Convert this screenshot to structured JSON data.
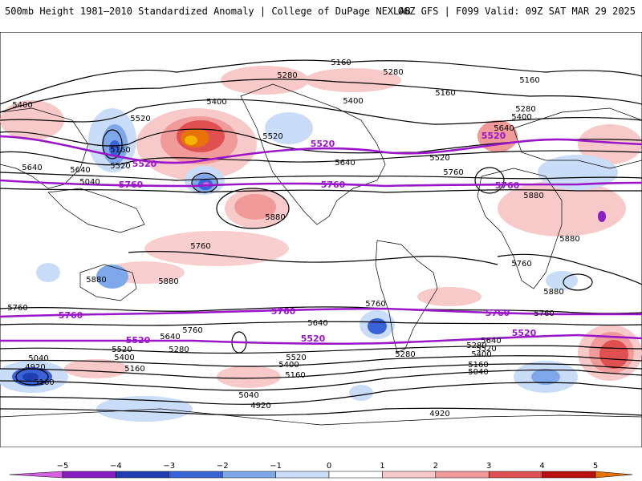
{
  "header": {
    "left": "500mb Height 1981–2010 Standardized Anomaly | College of DuPage NEXLAB",
    "right": "06Z GFS | F099 Valid: 09Z SAT MAR 29 2025"
  },
  "contour_labels": {
    "black": [
      "5160",
      "5280",
      "5400",
      "5160",
      "5280",
      "5400",
      "5400",
      "5520",
      "5640",
      "5160",
      "5520",
      "5640",
      "5760",
      "5640",
      "5880",
      "5880",
      "5880",
      "5880",
      "5880",
      "5760",
      "5760",
      "5640",
      "5760",
      "5760",
      "5640",
      "5520",
      "5400",
      "5280",
      "5160",
      "5040",
      "4920",
      "5280",
      "5520",
      "5400",
      "5160",
      "5040",
      "4920",
      "5640",
      "5520",
      "5400",
      "5280",
      "5160",
      "5040",
      "4920",
      "5160",
      "5280",
      "5400",
      "5520",
      "5640",
      "5520",
      "5160",
      "5040",
      "5880",
      "5760",
      "5760"
    ],
    "purple": [
      "5520",
      "5520",
      "5520",
      "5760",
      "5760",
      "5760",
      "5760",
      "5760",
      "5760",
      "5520",
      "5520",
      "5520"
    ]
  },
  "colorbar": {
    "ticks": [
      "−5",
      "−4",
      "−3",
      "−2",
      "−1",
      "0",
      "1",
      "2",
      "3",
      "4",
      "5"
    ],
    "colors": [
      "#d760e0",
      "#8a1fc4",
      "#1f3fb0",
      "#3a63d8",
      "#7fa8ea",
      "#c9dcf8",
      "#ffffff",
      "#f8c9c9",
      "#f09a9a",
      "#e05050",
      "#b80f0f",
      "#e8720a",
      "#f4b400"
    ]
  }
}
